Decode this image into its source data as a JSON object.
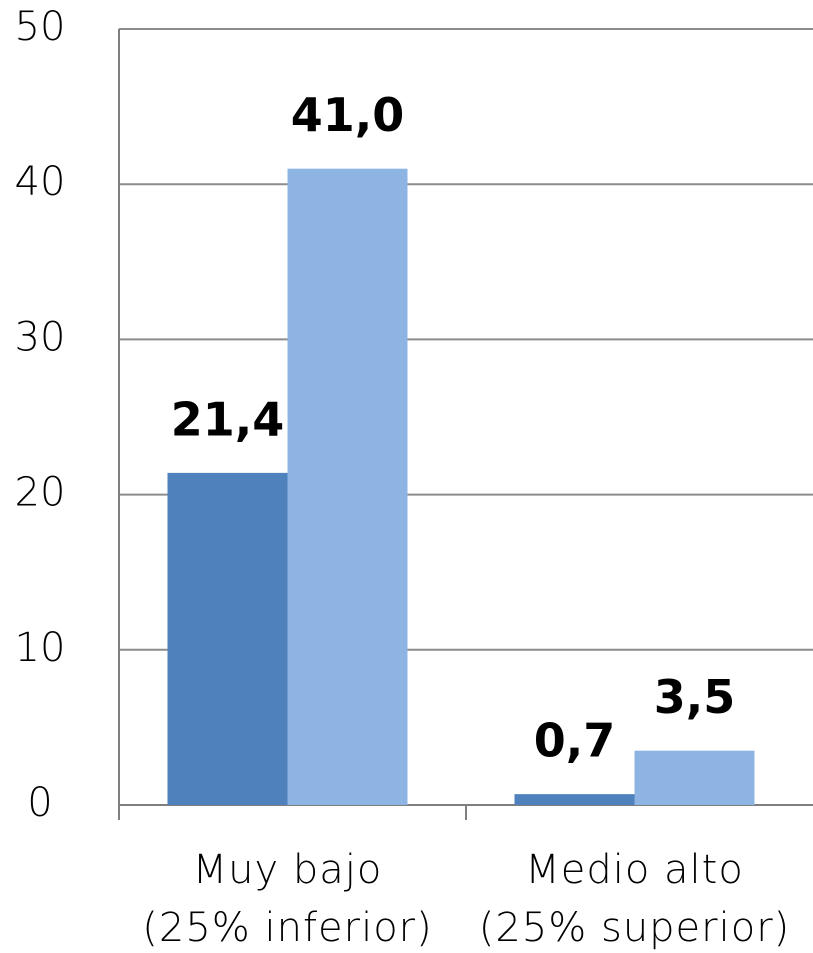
{
  "chart_data": {
    "type": "bar",
    "categories": [
      [
        "Muy  bajo",
        "(25% inferior)"
      ],
      [
        "Medio alto",
        "(25% superior)"
      ]
    ],
    "series": [
      {
        "color": "#4f81bd",
        "values": [
          21.4,
          0.7
        ],
        "value_labels": [
          "21,4",
          "0,7"
        ]
      },
      {
        "color": "#8eb4e3",
        "values": [
          41.0,
          3.5
        ],
        "value_labels": [
          "41,0",
          "3,5"
        ]
      }
    ],
    "ylim": [
      0,
      50
    ],
    "yticks": [
      0,
      10,
      20,
      30,
      40,
      50
    ],
    "grid": true
  }
}
